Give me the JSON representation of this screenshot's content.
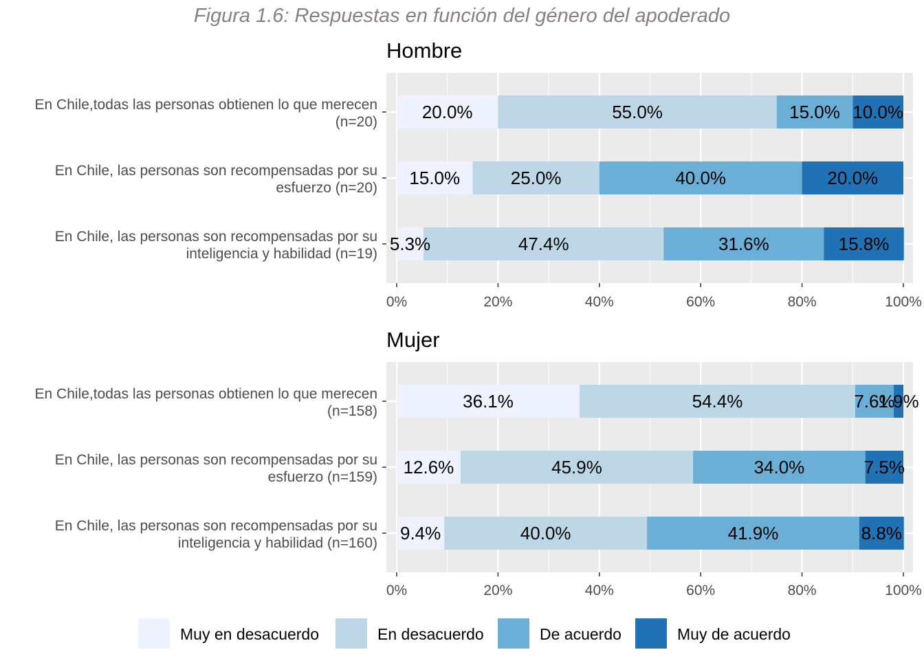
{
  "figure_title": "Figura 1.6: Respuestas en función del género del apoderado",
  "colors": {
    "panel_bg": "#ebebeb",
    "grid": "#ffffff",
    "levels": [
      "#eff3ff",
      "#bdd7e7",
      "#6baed6",
      "#2171b5"
    ]
  },
  "chart_data": [
    {
      "type": "bar",
      "orientation": "horizontal",
      "stacked": true,
      "title": "Hombre",
      "xlabel": "",
      "ylabel": "",
      "xlim": [
        0,
        100
      ],
      "x_ticks": [
        "0%",
        "20%",
        "40%",
        "60%",
        "80%",
        "100%"
      ],
      "grid": true,
      "categories": [
        [
          "En Chile,todas las personas obtienen lo que merecen",
          "(n=20)"
        ],
        [
          "En Chile, las personas son recompensadas por su",
          "esfuerzo (n=20)"
        ],
        [
          "En Chile, las personas son recompensadas por su",
          "inteligencia y habilidad (n=19)"
        ]
      ],
      "series": [
        {
          "name": "Muy en desacuerdo",
          "values": [
            20.0,
            15.0,
            5.3
          ],
          "labels": [
            "20.0%",
            "15.0%",
            "5.3%"
          ]
        },
        {
          "name": "En desacuerdo",
          "values": [
            55.0,
            25.0,
            47.4
          ],
          "labels": [
            "55.0%",
            "25.0%",
            "47.4%"
          ]
        },
        {
          "name": "De acuerdo",
          "values": [
            15.0,
            40.0,
            31.6
          ],
          "labels": [
            "15.0%",
            "40.0%",
            "31.6%"
          ]
        },
        {
          "name": "Muy de acuerdo",
          "values": [
            10.0,
            20.0,
            15.8
          ],
          "labels": [
            "10.0%",
            "20.0%",
            "15.8%"
          ]
        }
      ]
    },
    {
      "type": "bar",
      "orientation": "horizontal",
      "stacked": true,
      "title": "Mujer",
      "xlabel": "",
      "ylabel": "",
      "xlim": [
        0,
        100
      ],
      "x_ticks": [
        "0%",
        "20%",
        "40%",
        "60%",
        "80%",
        "100%"
      ],
      "grid": true,
      "categories": [
        [
          "En Chile,todas las personas obtienen lo que merecen",
          "(n=158)"
        ],
        [
          "En Chile, las personas son recompensadas por su",
          "esfuerzo (n=159)"
        ],
        [
          "En Chile, las personas son recompensadas por su",
          "inteligencia y habilidad (n=160)"
        ]
      ],
      "series": [
        {
          "name": "Muy en desacuerdo",
          "values": [
            36.1,
            12.6,
            9.4
          ],
          "labels": [
            "36.1%",
            "12.6%",
            "9.4%"
          ]
        },
        {
          "name": "En desacuerdo",
          "values": [
            54.4,
            45.9,
            40.0
          ],
          "labels": [
            "54.4%",
            "45.9%",
            "40.0%"
          ]
        },
        {
          "name": "De acuerdo",
          "values": [
            7.6,
            34.0,
            41.9
          ],
          "labels": [
            "7.6%",
            "34.0%",
            "41.9%"
          ]
        },
        {
          "name": "Muy de acuerdo",
          "values": [
            1.9,
            7.5,
            8.8
          ],
          "labels": [
            "1.9%",
            "7.5%",
            "8.8%"
          ]
        }
      ]
    }
  ],
  "legend": {
    "position": "bottom",
    "items": [
      "Muy en desacuerdo",
      "En desacuerdo",
      "De acuerdo",
      "Muy de acuerdo"
    ]
  }
}
